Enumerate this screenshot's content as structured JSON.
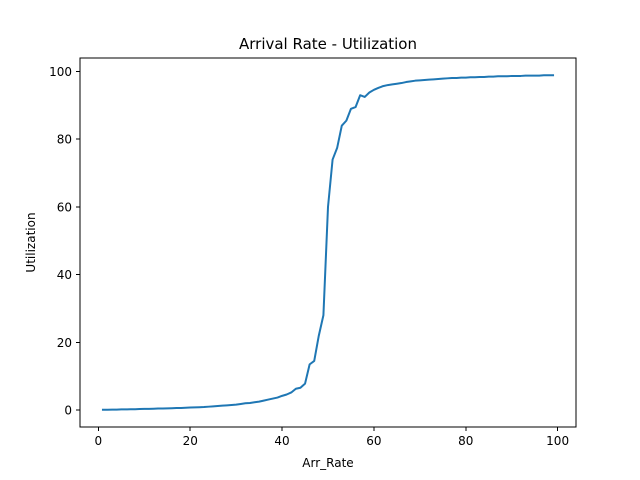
{
  "chart_data": {
    "type": "line",
    "title": "Arrival Rate - Utilization",
    "xlabel": "Arr_Rate",
    "ylabel": "Utilization",
    "xlim": [
      -4,
      104
    ],
    "ylim": [
      -5,
      104
    ],
    "xticks": [
      0,
      20,
      40,
      60,
      80,
      100
    ],
    "yticks": [
      0,
      20,
      40,
      60,
      80,
      100
    ],
    "grid": false,
    "line_color": "#1f77b4",
    "series": [
      {
        "x": [
          1,
          2,
          3,
          4,
          5,
          6,
          7,
          8,
          9,
          10,
          11,
          12,
          13,
          14,
          15,
          16,
          17,
          18,
          19,
          20,
          21,
          22,
          23,
          24,
          25,
          26,
          27,
          28,
          29,
          30,
          31,
          32,
          33,
          34,
          35,
          36,
          37,
          38,
          39,
          40,
          41,
          42,
          43,
          44,
          45,
          46,
          47,
          48,
          49,
          50,
          51,
          52,
          53,
          54,
          55,
          56,
          57,
          58,
          59,
          60,
          61,
          62,
          63,
          64,
          65,
          66,
          67,
          68,
          69,
          70,
          71,
          72,
          73,
          74,
          75,
          76,
          77,
          78,
          79,
          80,
          81,
          82,
          83,
          84,
          85,
          86,
          87,
          88,
          89,
          90,
          91,
          92,
          93,
          94,
          95,
          96,
          97,
          98,
          99
        ],
        "y": [
          0.1,
          0.1,
          0.15,
          0.15,
          0.2,
          0.2,
          0.25,
          0.25,
          0.3,
          0.35,
          0.35,
          0.4,
          0.45,
          0.45,
          0.5,
          0.55,
          0.6,
          0.6,
          0.7,
          0.75,
          0.8,
          0.85,
          0.9,
          1.0,
          1.1,
          1.2,
          1.3,
          1.4,
          1.5,
          1.6,
          1.8,
          2.0,
          2.1,
          2.3,
          2.5,
          2.8,
          3.1,
          3.4,
          3.7,
          4.2,
          4.6,
          5.2,
          6.3,
          6.6,
          7.8,
          13.5,
          14.5,
          22.0,
          28.0,
          60.0,
          74.0,
          77.5,
          84.0,
          85.5,
          89.0,
          89.5,
          93.0,
          92.5,
          93.8,
          94.6,
          95.2,
          95.7,
          96.0,
          96.2,
          96.4,
          96.6,
          96.9,
          97.1,
          97.3,
          97.4,
          97.5,
          97.6,
          97.7,
          97.8,
          97.9,
          98.0,
          98.1,
          98.1,
          98.2,
          98.2,
          98.3,
          98.3,
          98.4,
          98.4,
          98.5,
          98.5,
          98.6,
          98.6,
          98.6,
          98.7,
          98.7,
          98.7,
          98.8,
          98.8,
          98.8,
          98.8,
          98.9,
          98.9,
          98.9
        ]
      }
    ]
  }
}
